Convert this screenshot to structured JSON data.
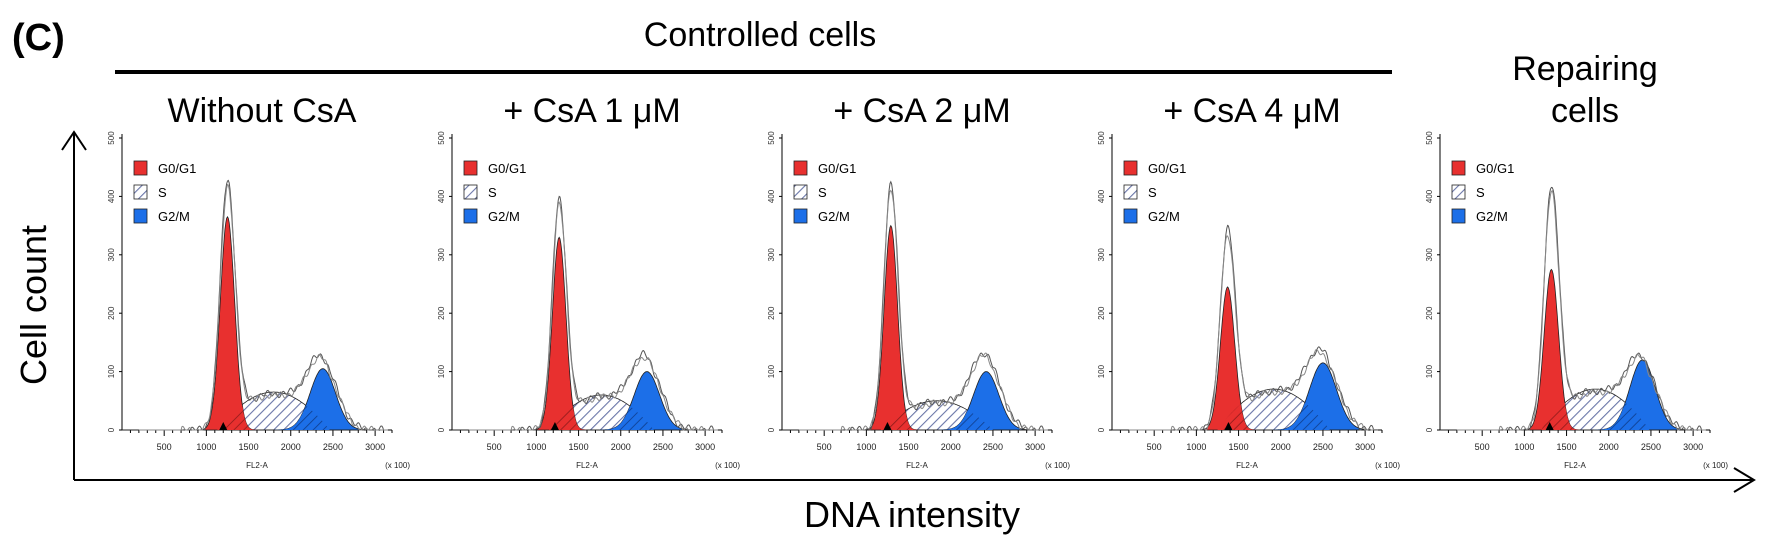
{
  "figure": {
    "panel_label": "(C)",
    "group_title": "Controlled cells",
    "y_axis_label": "Cell count",
    "x_axis_label": "DNA intensity"
  },
  "chart_data": {
    "type": "area",
    "legend": [
      {
        "name": "G0/G1",
        "color": "#e8302f",
        "pattern": "solid"
      },
      {
        "name": "S",
        "color": "#2b3a8c",
        "pattern": "hatched"
      },
      {
        "name": "G2/M",
        "color": "#1c6fe8",
        "pattern": "solid"
      }
    ],
    "x_tick_labels": [
      "500",
      "1000",
      "1500",
      "2000",
      "2500",
      "3000"
    ],
    "y_tick_labels": [
      "0",
      "100",
      "200",
      "300",
      "400",
      "500"
    ],
    "xlim": [
      0,
      3200
    ],
    "ylim": [
      0,
      500
    ],
    "xlabel": "FL2-A",
    "x_scale_note": "(x 100)",
    "panels": [
      {
        "title": "Without CsA",
        "g1_center": 1250,
        "g1_sd": 85,
        "g1_height": 365,
        "g2_center": 2380,
        "g2_sd": 150,
        "g2_height": 105,
        "s_height": 65,
        "total_peak": 410,
        "total_g2": 125,
        "marker": 1200
      },
      {
        "title": "+ CsA 1 μM",
        "g1_center": 1270,
        "g1_sd": 80,
        "g1_height": 330,
        "g2_center": 2310,
        "g2_sd": 150,
        "g2_height": 100,
        "s_height": 60,
        "total_peak": 380,
        "total_g2": 125,
        "marker": 1220
      },
      {
        "title": "+ CsA 2 μM",
        "g1_center": 1290,
        "g1_sd": 80,
        "g1_height": 350,
        "g2_center": 2420,
        "g2_sd": 150,
        "g2_height": 100,
        "s_height": 50,
        "total_peak": 410,
        "total_g2": 130,
        "marker": 1250
      },
      {
        "title": "+ CsA 4 μM",
        "g1_center": 1370,
        "g1_sd": 85,
        "g1_height": 245,
        "g2_center": 2500,
        "g2_sd": 160,
        "g2_height": 115,
        "s_height": 70,
        "total_peak": 325,
        "total_g2": 135,
        "marker": 1380
      },
      {
        "title": "Repairing cells",
        "g1_center": 1320,
        "g1_sd": 85,
        "g1_height": 275,
        "g2_center": 2400,
        "g2_sd": 150,
        "g2_height": 120,
        "s_height": 70,
        "total_peak": 400,
        "total_g2": 125,
        "marker": 1300
      }
    ]
  }
}
